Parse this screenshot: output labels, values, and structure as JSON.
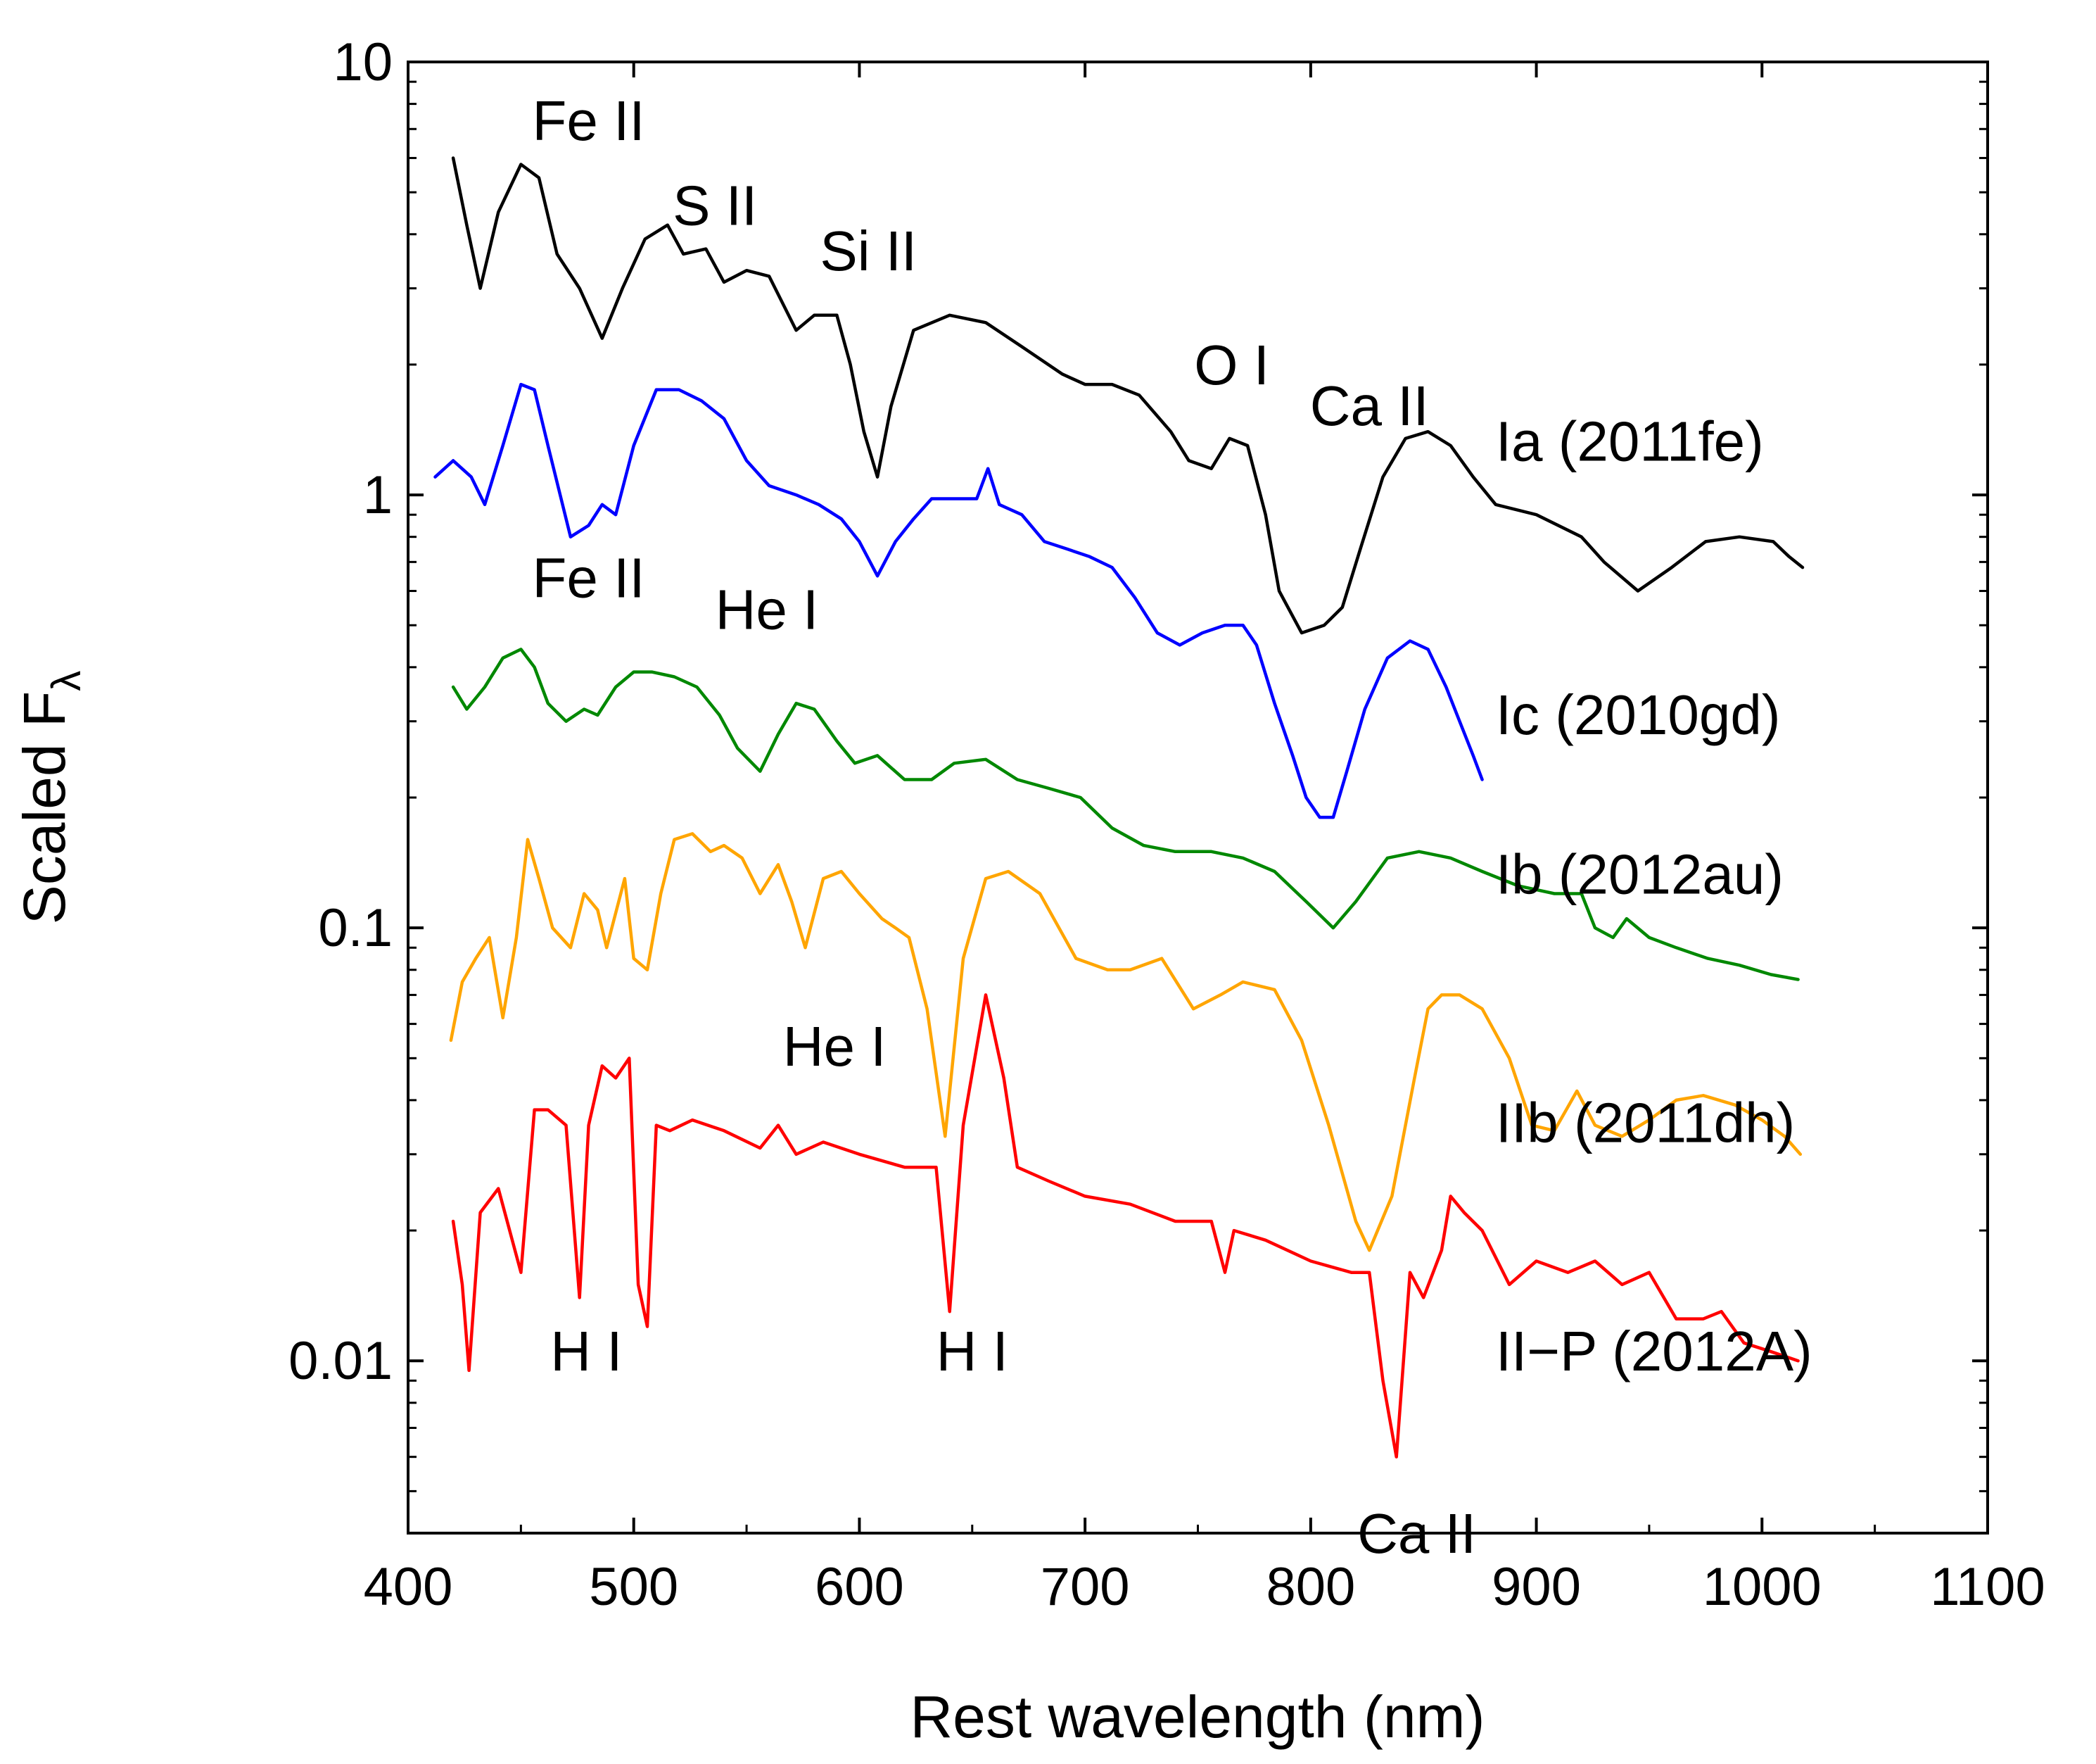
{
  "chart_data": {
    "type": "line",
    "title": "",
    "xlabel": "Rest wavelength (nm)",
    "ylabel": "Scaled F",
    "ylabel_subscript": "λ",
    "xlim": [
      400,
      1100
    ],
    "ylim": [
      0.004,
      10
    ],
    "yscale": "log",
    "grid": false,
    "x_ticks": [
      400,
      500,
      600,
      700,
      800,
      900,
      1000,
      1100
    ],
    "x_tick_labels": [
      "400",
      "500",
      "600",
      "700",
      "800",
      "900",
      "1000",
      "1100"
    ],
    "y_ticks": [
      0.01,
      0.1,
      1,
      10
    ],
    "y_tick_labels": [
      "0.01",
      "0.1",
      "1",
      "10"
    ],
    "series": [
      {
        "name": "Ia (2011fe)",
        "color": "#000000",
        "x": [
          420,
          426,
          432,
          440,
          450,
          458,
          466,
          476,
          486,
          495,
          505,
          515,
          522,
          532,
          540,
          550,
          560,
          572,
          580,
          590,
          596,
          602,
          608,
          614,
          624,
          640,
          656,
          672,
          690,
          700,
          712,
          724,
          738,
          746,
          756,
          764,
          772,
          780,
          786,
          796,
          806,
          814,
          822,
          832,
          842,
          852,
          862,
          872,
          882,
          900,
          920,
          930,
          945,
          960,
          975,
          990,
          1005,
          1012,
          1018
        ],
        "y": [
          6.0,
          4.2,
          3.0,
          4.5,
          5.8,
          5.4,
          3.6,
          3.0,
          2.3,
          3.0,
          3.9,
          4.2,
          3.6,
          3.7,
          3.1,
          3.3,
          3.2,
          2.4,
          2.6,
          2.6,
          2.0,
          1.4,
          1.1,
          1.6,
          2.4,
          2.6,
          2.5,
          2.2,
          1.9,
          1.8,
          1.8,
          1.7,
          1.4,
          1.2,
          1.15,
          1.35,
          1.3,
          0.9,
          0.6,
          0.48,
          0.5,
          0.55,
          0.75,
          1.1,
          1.35,
          1.4,
          1.3,
          1.1,
          0.95,
          0.9,
          0.8,
          0.7,
          0.6,
          0.68,
          0.78,
          0.8,
          0.78,
          0.72,
          0.68
        ]
      },
      {
        "name": "Ic (2010gd)",
        "color": "#0000ff",
        "x": [
          412,
          420,
          428,
          434,
          442,
          450,
          456,
          462,
          472,
          480,
          486,
          492,
          500,
          510,
          520,
          530,
          540,
          550,
          560,
          572,
          582,
          592,
          600,
          608,
          616,
          624,
          632,
          642,
          652,
          657,
          662,
          672,
          682,
          692,
          702,
          712,
          722,
          732,
          742,
          752,
          762,
          770,
          776,
          784,
          792,
          798,
          804,
          810,
          816,
          824,
          834,
          844,
          852,
          860,
          866,
          872,
          876
        ],
        "y": [
          1.1,
          1.2,
          1.1,
          0.95,
          1.3,
          1.8,
          1.75,
          1.3,
          0.8,
          0.85,
          0.95,
          0.9,
          1.3,
          1.75,
          1.75,
          1.65,
          1.5,
          1.2,
          1.05,
          1.0,
          0.95,
          0.88,
          0.78,
          0.65,
          0.78,
          0.88,
          0.98,
          0.98,
          0.98,
          1.15,
          0.95,
          0.9,
          0.78,
          0.75,
          0.72,
          0.68,
          0.58,
          0.48,
          0.45,
          0.48,
          0.5,
          0.5,
          0.45,
          0.33,
          0.25,
          0.2,
          0.18,
          0.18,
          0.23,
          0.32,
          0.42,
          0.46,
          0.44,
          0.36,
          0.3,
          0.25,
          0.22
        ]
      },
      {
        "name": "Ib (2012au)",
        "color": "#008800",
        "x": [
          420,
          426,
          434,
          442,
          450,
          456,
          462,
          470,
          478,
          484,
          492,
          500,
          508,
          518,
          528,
          538,
          546,
          556,
          564,
          572,
          580,
          590,
          598,
          608,
          620,
          632,
          642,
          656,
          670,
          684,
          698,
          712,
          726,
          740,
          756,
          770,
          784,
          798,
          810,
          820,
          834,
          848,
          862,
          876,
          892,
          908,
          920,
          926,
          934,
          940,
          950,
          962,
          976,
          990,
          1004,
          1016
        ],
        "y": [
          0.36,
          0.32,
          0.36,
          0.42,
          0.44,
          0.4,
          0.33,
          0.3,
          0.32,
          0.31,
          0.36,
          0.39,
          0.39,
          0.38,
          0.36,
          0.31,
          0.26,
          0.23,
          0.28,
          0.33,
          0.32,
          0.27,
          0.24,
          0.25,
          0.22,
          0.22,
          0.24,
          0.245,
          0.22,
          0.21,
          0.2,
          0.17,
          0.155,
          0.15,
          0.15,
          0.145,
          0.135,
          0.115,
          0.1,
          0.115,
          0.145,
          0.15,
          0.145,
          0.135,
          0.125,
          0.12,
          0.12,
          0.1,
          0.095,
          0.105,
          0.095,
          0.09,
          0.085,
          0.082,
          0.078,
          0.076
        ]
      },
      {
        "name": "IIb (2011dh)",
        "color": "#ffa500",
        "x": [
          419,
          424,
          430,
          436,
          442,
          448,
          453,
          458,
          464,
          472,
          478,
          484,
          488,
          496,
          500,
          506,
          512,
          518,
          526,
          534,
          540,
          548,
          556,
          564,
          570,
          576,
          584,
          592,
          600,
          610,
          616,
          622,
          630,
          638,
          646,
          656,
          666,
          680,
          696,
          710,
          720,
          734,
          748,
          760,
          770,
          784,
          796,
          808,
          820,
          826,
          836,
          846,
          852,
          858,
          866,
          876,
          888,
          898,
          908,
          918,
          926,
          938,
          950,
          962,
          974,
          988,
          1000,
          1010,
          1017
        ],
        "y": [
          0.055,
          0.075,
          0.085,
          0.095,
          0.062,
          0.095,
          0.16,
          0.13,
          0.1,
          0.09,
          0.12,
          0.11,
          0.09,
          0.13,
          0.085,
          0.08,
          0.12,
          0.16,
          0.165,
          0.15,
          0.155,
          0.145,
          0.12,
          0.14,
          0.115,
          0.09,
          0.13,
          0.135,
          0.12,
          0.105,
          0.1,
          0.095,
          0.065,
          0.033,
          0.085,
          0.13,
          0.135,
          0.12,
          0.085,
          0.08,
          0.08,
          0.085,
          0.065,
          0.07,
          0.075,
          0.072,
          0.055,
          0.035,
          0.021,
          0.018,
          0.024,
          0.045,
          0.065,
          0.07,
          0.07,
          0.065,
          0.05,
          0.035,
          0.034,
          0.042,
          0.035,
          0.033,
          0.036,
          0.04,
          0.041,
          0.039,
          0.036,
          0.033,
          0.03
        ]
      },
      {
        "name": "II-P (2012A)",
        "color": "#ff0000",
        "x": [
          420,
          424,
          427,
          432,
          440,
          450,
          456,
          462,
          470,
          476,
          480,
          486,
          492,
          498,
          502,
          506,
          510,
          516,
          526,
          540,
          556,
          564,
          572,
          584,
          600,
          620,
          634,
          640,
          646,
          656,
          664,
          670,
          684,
          700,
          720,
          740,
          756,
          762,
          766,
          780,
          800,
          818,
          826,
          832,
          838,
          844,
          850,
          858,
          862,
          868,
          876,
          888,
          900,
          914,
          926,
          938,
          950,
          962,
          974,
          982,
          992,
          1004,
          1016
        ],
        "y": [
          0.021,
          0.015,
          0.0095,
          0.022,
          0.025,
          0.016,
          0.038,
          0.038,
          0.035,
          0.014,
          0.035,
          0.048,
          0.045,
          0.05,
          0.015,
          0.012,
          0.035,
          0.034,
          0.036,
          0.034,
          0.031,
          0.035,
          0.03,
          0.032,
          0.03,
          0.028,
          0.028,
          0.013,
          0.035,
          0.07,
          0.045,
          0.028,
          0.026,
          0.024,
          0.023,
          0.021,
          0.021,
          0.016,
          0.02,
          0.019,
          0.017,
          0.016,
          0.016,
          0.009,
          0.006,
          0.016,
          0.014,
          0.018,
          0.024,
          0.022,
          0.02,
          0.015,
          0.017,
          0.016,
          0.017,
          0.015,
          0.016,
          0.0125,
          0.0125,
          0.013,
          0.011,
          0.0105,
          0.01
        ]
      }
    ],
    "series_labels": [
      {
        "text": "Ia (2011fe)",
        "color": "#000000"
      },
      {
        "text": "Ic (2010gd)",
        "color": "#000000"
      },
      {
        "text": "Ib (2012au)",
        "color": "#000000"
      },
      {
        "text": "IIb (2011dh)",
        "color": "#000000"
      },
      {
        "text": "II−P (2012A)",
        "color": "#000000"
      }
    ],
    "annotations": [
      {
        "text": "Fe II",
        "x": 480,
        "y": 6.6
      },
      {
        "text": "S II",
        "x": 536,
        "y": 4.2
      },
      {
        "text": "Si II",
        "x": 604,
        "y": 3.3
      },
      {
        "text": "O I",
        "x": 765,
        "y": 1.8
      },
      {
        "text": "Ca II",
        "x": 826,
        "y": 1.45
      },
      {
        "text": "Fe II",
        "x": 480,
        "y": 0.58
      },
      {
        "text": "He I",
        "x": 559,
        "y": 0.49
      },
      {
        "text": "He I",
        "x": 589,
        "y": 0.048
      },
      {
        "text": "H I",
        "x": 479,
        "y": 0.0095
      },
      {
        "text": "H I",
        "x": 650,
        "y": 0.0095
      },
      {
        "text": "Ca II",
        "x": 847,
        "y": 0.0036
      }
    ]
  }
}
